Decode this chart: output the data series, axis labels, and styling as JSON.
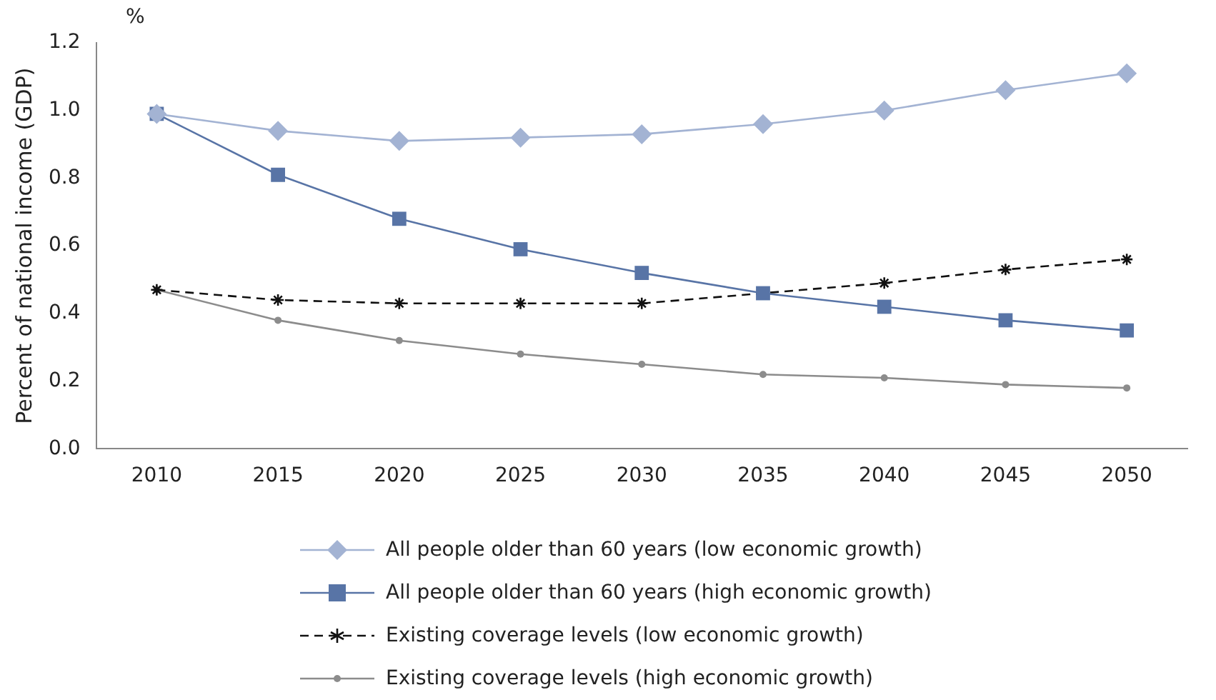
{
  "chart_data": {
    "type": "line",
    "ylabel": "Percent of national income (GDP)",
    "annotations": [
      "%"
    ],
    "categories": [
      "2010",
      "2015",
      "2020",
      "2025",
      "2030",
      "2035",
      "2040",
      "2045",
      "2050"
    ],
    "ylim": [
      0,
      1.2
    ],
    "yticks": [
      {
        "value": 0,
        "label": "0.0"
      },
      {
        "value": 0.2,
        "label": "0.2"
      },
      {
        "value": 0.4,
        "label": "0.4"
      },
      {
        "value": 0.6,
        "label": "0.6"
      },
      {
        "value": 0.8,
        "label": "0.8"
      },
      {
        "value": 1,
        "label": "1.0"
      },
      {
        "value": 1.2,
        "label": "1.2"
      }
    ],
    "grid": false,
    "legend": "bottom",
    "series": [
      {
        "name": "All people older than 60 years (low economic growth)",
        "color": "#a3b3d3",
        "marker": "diamond",
        "line_style": "solid",
        "values": [
          0.99,
          0.94,
          0.91,
          0.92,
          0.93,
          0.96,
          1.0,
          1.06,
          1.11
        ]
      },
      {
        "name": "All people older than 60 years (high economic growth)",
        "color": "#5874a6",
        "marker": "square",
        "line_style": "solid",
        "values": [
          0.99,
          0.81,
          0.68,
          0.59,
          0.52,
          0.46,
          0.42,
          0.38,
          0.35
        ]
      },
      {
        "name": "Existing coverage levels (low economic growth)",
        "color": "#111111",
        "marker": "cross",
        "line_style": "dashed",
        "values": [
          0.47,
          0.44,
          0.43,
          0.43,
          0.43,
          0.46,
          0.49,
          0.53,
          0.56
        ]
      },
      {
        "name": "Existing coverage levels (high economic growth)",
        "color": "#8c8c8c",
        "marker": "circle",
        "line_style": "solid",
        "values": [
          0.47,
          0.38,
          0.32,
          0.28,
          0.25,
          0.22,
          0.21,
          0.19,
          0.18
        ]
      }
    ]
  }
}
